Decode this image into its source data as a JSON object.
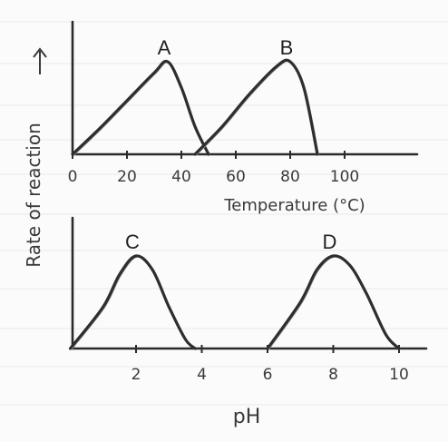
{
  "y_label": "Rate of reaction",
  "chart_data": [
    {
      "type": "line",
      "xlabel": "Temperature (°C)",
      "ylabel": "Rate of reaction",
      "x_ticks": [
        0,
        20,
        40,
        60,
        80,
        100
      ],
      "xlim": [
        0,
        120
      ],
      "ylim": [
        0,
        1
      ],
      "series": [
        {
          "name": "A",
          "x": [
            0,
            10,
            20,
            30,
            35,
            40,
            45,
            50
          ],
          "y": [
            0.0,
            0.28,
            0.58,
            0.88,
            1.0,
            0.72,
            0.3,
            0.0
          ]
        },
        {
          "name": "B",
          "x": [
            45,
            55,
            65,
            75,
            80,
            85,
            90
          ],
          "y": [
            0.0,
            0.3,
            0.65,
            0.95,
            1.0,
            0.72,
            0.0
          ]
        }
      ]
    },
    {
      "type": "line",
      "xlabel": "pH",
      "ylabel": "Rate of reaction",
      "x_ticks": [
        2,
        4,
        6,
        8,
        10
      ],
      "xlim": [
        0,
        11
      ],
      "ylim": [
        0,
        1
      ],
      "series": [
        {
          "name": "C",
          "x": [
            0,
            1,
            1.5,
            2,
            2.5,
            3,
            3.5,
            3.8
          ],
          "y": [
            0.0,
            0.45,
            0.8,
            1.0,
            0.85,
            0.45,
            0.1,
            0.0
          ]
        },
        {
          "name": "D",
          "x": [
            6,
            7,
            7.5,
            8,
            8.5,
            9,
            9.6,
            10
          ],
          "y": [
            0.0,
            0.5,
            0.85,
            1.0,
            0.9,
            0.6,
            0.15,
            0.0
          ]
        }
      ]
    }
  ]
}
